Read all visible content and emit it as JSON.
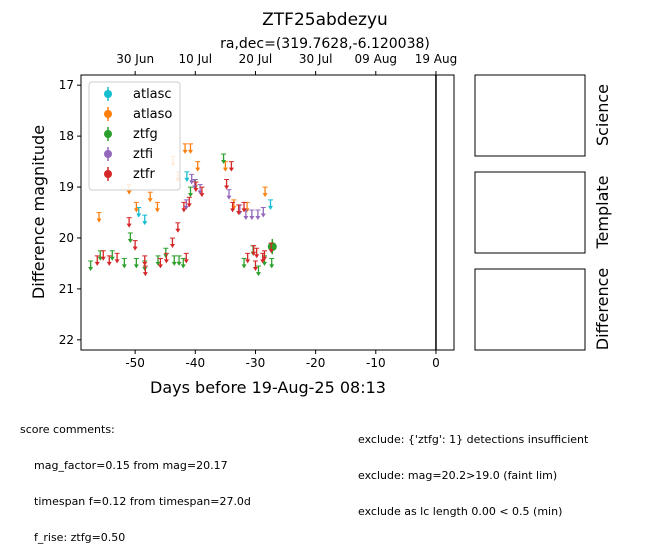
{
  "chart_data": {
    "type": "scatter",
    "title": "ZTF25abdezyu",
    "subtitle": "ra,dec=(319.7628,-6.120038)",
    "xlabel": "Days before 19-Aug-25 08:13",
    "ylabel": "Difference magnitude",
    "xlim": [
      -59,
      3
    ],
    "ylim": [
      22.2,
      16.8
    ],
    "y_inverted": true,
    "x_ticks": [
      -50,
      -40,
      -30,
      -20,
      -10,
      0
    ],
    "y_ticks": [
      17,
      18,
      19,
      20,
      21,
      22
    ],
    "top_axis_ticks": [
      {
        "label": "30 Jun",
        "x": -50
      },
      {
        "label": "10 Jul",
        "x": -40
      },
      {
        "label": "20 Jul",
        "x": -30
      },
      {
        "label": "30 Jul",
        "x": -20
      },
      {
        "label": "09 Aug",
        "x": -10
      },
      {
        "label": "19 Aug",
        "x": 0
      }
    ],
    "vline_x": 0,
    "legend_position": "upper-left",
    "series": [
      {
        "name": "atlasc",
        "color": "#17becf",
        "upper_limits": [
          [
            -49.4,
            19.5
          ],
          [
            -48.4,
            19.65
          ],
          [
            -41.4,
            18.8
          ],
          [
            -27.5,
            19.35
          ]
        ]
      },
      {
        "name": "atlaso",
        "color": "#ff7f0e",
        "upper_limits": [
          [
            -56,
            19.6
          ],
          [
            -51,
            19.05
          ],
          [
            -49.8,
            19.4
          ],
          [
            -47.5,
            19.2
          ],
          [
            -46.3,
            19.4
          ],
          [
            -43.7,
            18.5
          ],
          [
            -42.9,
            18.8
          ],
          [
            -41.7,
            18.25
          ],
          [
            -40.8,
            18.25
          ],
          [
            -39.6,
            18.6
          ],
          [
            -35,
            18.6
          ],
          [
            -33.6,
            19.35
          ],
          [
            -31.4,
            19.4
          ],
          [
            -28.4,
            19.1
          ]
        ]
      },
      {
        "name": "ztfg",
        "color": "#2ca02c",
        "upper_limits": [
          [
            -57.4,
            20.55
          ],
          [
            -55.8,
            20.35
          ],
          [
            -53.8,
            20.35
          ],
          [
            -51.8,
            20.5
          ],
          [
            -50.8,
            20.0
          ],
          [
            -49.8,
            20.5
          ],
          [
            -48.4,
            20.55
          ],
          [
            -46.2,
            20.45
          ],
          [
            -44.9,
            20.3
          ],
          [
            -43.5,
            20.45
          ],
          [
            -42.7,
            20.45
          ],
          [
            -42,
            20.5
          ],
          [
            -40.8,
            19.1
          ],
          [
            -40,
            18.95
          ],
          [
            -35.3,
            18.45
          ],
          [
            -31.9,
            20.5
          ],
          [
            -30.4,
            20.25
          ],
          [
            -29.5,
            20.65
          ],
          [
            -28.5,
            20.45
          ],
          [
            -27.3,
            20.5
          ]
        ],
        "detections": [
          {
            "x": -27.2,
            "y": 20.17,
            "err": 0.15
          }
        ]
      },
      {
        "name": "ztfi",
        "color": "#9467bd",
        "upper_limits": [
          [
            -41.5,
            19.35
          ],
          [
            -40.6,
            18.85
          ],
          [
            -40.1,
            18.95
          ],
          [
            -39.2,
            19.05
          ],
          [
            -34.4,
            19.15
          ],
          [
            -32.6,
            19.45
          ],
          [
            -31.6,
            19.55
          ],
          [
            -30.6,
            19.55
          ],
          [
            -29.6,
            19.55
          ],
          [
            -28.7,
            19.5
          ]
        ]
      },
      {
        "name": "ztfr",
        "color": "#d62728",
        "upper_limits": [
          [
            -56.3,
            20.45
          ],
          [
            -55.3,
            20.35
          ],
          [
            -54.3,
            20.45
          ],
          [
            -53,
            20.4
          ],
          [
            -51,
            19.7
          ],
          [
            -50,
            20.15
          ],
          [
            -48.4,
            20.45
          ],
          [
            -48.3,
            20.65
          ],
          [
            -45.8,
            20.5
          ],
          [
            -44.8,
            20.4
          ],
          [
            -43.8,
            20.1
          ],
          [
            -42.9,
            19.8
          ],
          [
            -41.9,
            19.4
          ],
          [
            -41.5,
            20.4
          ],
          [
            -41,
            19.3
          ],
          [
            -39.9,
            19.0
          ],
          [
            -38.9,
            19.1
          ],
          [
            -34.8,
            18.95
          ],
          [
            -34,
            18.6
          ],
          [
            -33.8,
            19.4
          ],
          [
            -32.8,
            19.45
          ],
          [
            -31.9,
            19.4
          ],
          [
            -31.3,
            20.4
          ],
          [
            -30.3,
            20.25
          ],
          [
            -30,
            20.55
          ],
          [
            -29.8,
            20.3
          ],
          [
            -28.8,
            20.4
          ],
          [
            -28.5,
            20.35
          ],
          [
            -27.4,
            20.2
          ]
        ]
      }
    ]
  },
  "panels": [
    {
      "label": "Science"
    },
    {
      "label": "Template"
    },
    {
      "label": "Difference"
    }
  ],
  "comments": {
    "header": "score comments:",
    "left": [
      "mag_factor=0.15 from mag=20.17",
      "timespan f=0.12 from timespan=27.0d",
      "f_rise: ztfg=0.50"
    ],
    "right": [
      "exclude: {'ztfg': 1} detections insufficient",
      "exclude: mag=20.2>19.0 (faint lim)",
      "exclude as lc length 0.00 < 0.5 (min)"
    ]
  }
}
